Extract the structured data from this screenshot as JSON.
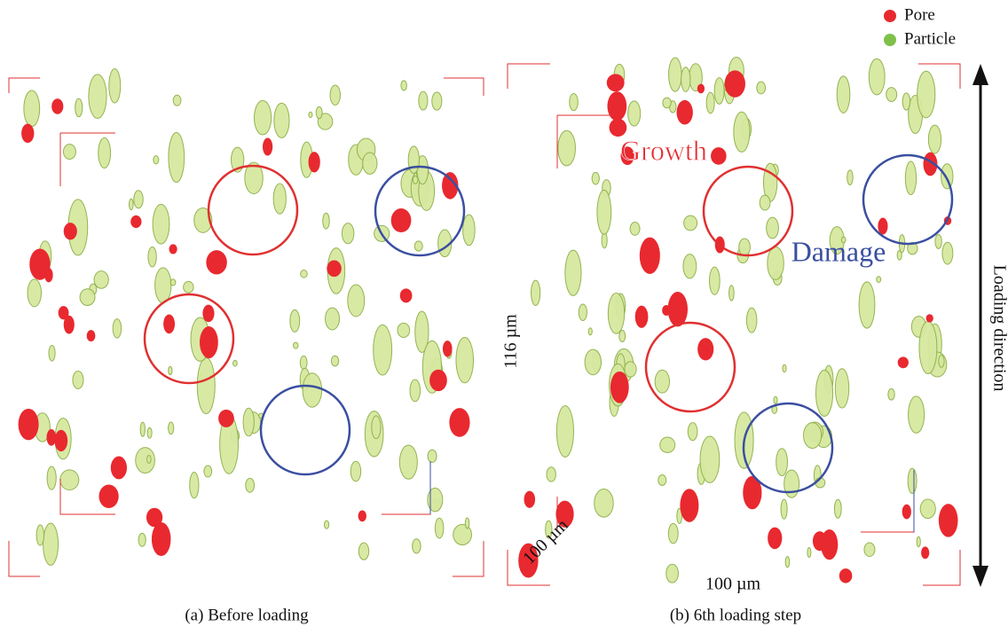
{
  "legend": [
    {
      "label": "Pore",
      "color": "#e8292f"
    },
    {
      "label": "Particle",
      "color": "#7fc04a"
    }
  ],
  "panels": [
    {
      "caption": "(a) Before loading"
    },
    {
      "caption": "(b) 6th loading step"
    }
  ],
  "annotations": {
    "growth": "Growth",
    "damage": "Damage",
    "height": "116 µm",
    "depth": "100 µm",
    "width": "100 µm",
    "loading": "Loading direction"
  }
}
